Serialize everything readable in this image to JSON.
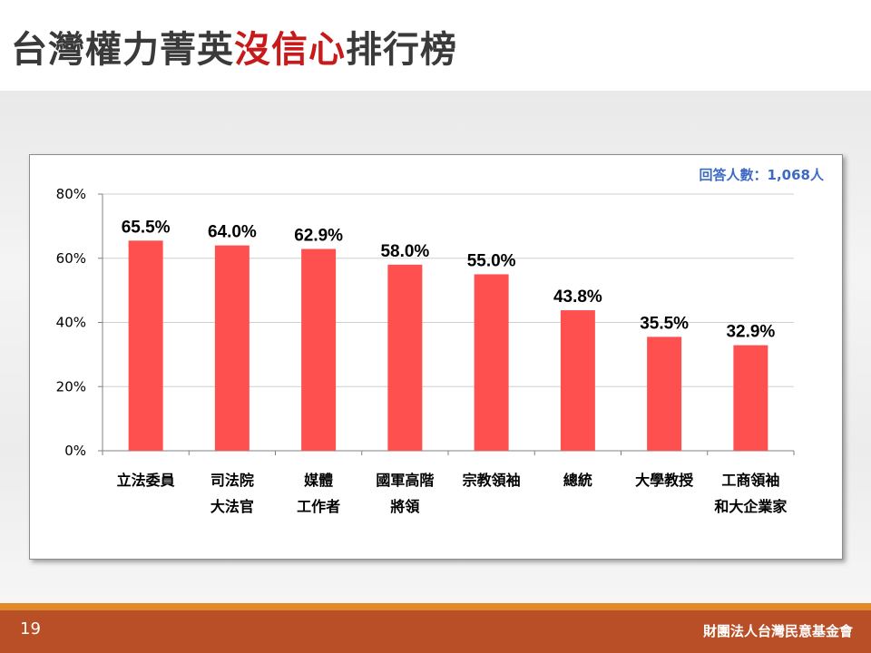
{
  "title": {
    "part1": "台灣權力菁英",
    "highlight": "沒信心",
    "part2": "排行榜"
  },
  "sample_size": "回答人數：1,068人",
  "page_number": "19",
  "organization": "財團法人台灣民意基金會",
  "colors": {
    "bar": "#ff5050",
    "title_highlight": "#c81a1a",
    "sample_text": "#3d6bc4",
    "footer": "#b84f26",
    "footer_stripe": "#e08a2a"
  },
  "chart_data": {
    "type": "bar",
    "categories": [
      [
        "立法委員"
      ],
      [
        "司法院",
        "大法官"
      ],
      [
        "媒體",
        "工作者"
      ],
      [
        "國軍高階",
        "將領"
      ],
      [
        "宗教領袖"
      ],
      [
        "總統"
      ],
      [
        "大學教授"
      ],
      [
        "工商領袖",
        "和大企業家"
      ]
    ],
    "values": [
      65.5,
      64.0,
      62.9,
      58.0,
      55.0,
      43.8,
      35.5,
      32.9
    ],
    "data_labels": [
      "65.5%",
      "64.0%",
      "62.9%",
      "58.0%",
      "55.0%",
      "43.8%",
      "35.5%",
      "32.9%"
    ],
    "y_ticks": [
      {
        "value": 0,
        "label": "0%"
      },
      {
        "value": 20,
        "label": "20%"
      },
      {
        "value": 40,
        "label": "40%"
      },
      {
        "value": 60,
        "label": "60%"
      },
      {
        "value": 80,
        "label": "80%"
      }
    ],
    "ylim": [
      0,
      80
    ],
    "grid": true
  }
}
